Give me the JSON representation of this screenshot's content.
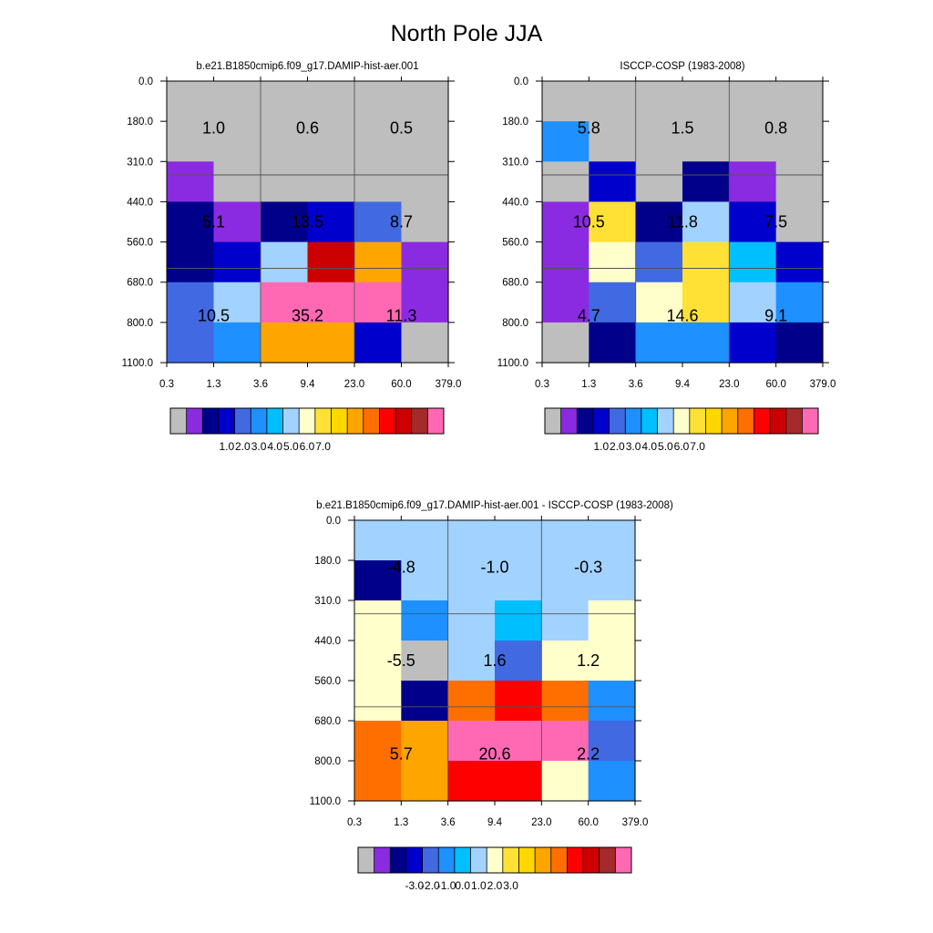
{
  "title": "North Pole JJA",
  "chart_data": [
    {
      "type": "heatmap",
      "title": "b.e21.B1850cmip6.f09_g17.DAMIP-hist-aer.001",
      "x_ticks": [
        "0.3",
        "1.3",
        "3.6",
        "9.4",
        "23.0",
        "60.0",
        "379.0"
      ],
      "y_ticks": [
        "0.0",
        "180.0",
        "310.0",
        "440.0",
        "560.0",
        "680.0",
        "800.0",
        "1100.0"
      ],
      "cell_colors": [
        [
          "#BEBEBE",
          "#BEBEBE",
          "#BEBEBE",
          "#BEBEBE",
          "#BEBEBE",
          "#BEBEBE"
        ],
        [
          "#BEBEBE",
          "#BEBEBE",
          "#BEBEBE",
          "#BEBEBE",
          "#BEBEBE",
          "#BEBEBE"
        ],
        [
          "#8A2BE2",
          "#BEBEBE",
          "#BEBEBE",
          "#BEBEBE",
          "#BEBEBE",
          "#BEBEBE"
        ],
        [
          "#00008B",
          "#8A2BE2",
          "#00008B",
          "#0000CD",
          "#4169E1",
          "#BEBEBE"
        ],
        [
          "#00008B",
          "#0000CD",
          "#A2D2FF",
          "#CC0000",
          "#FFA500",
          "#8A2BE2"
        ],
        [
          "#4169E1",
          "#A2D2FF",
          "#FF69B4",
          "#FF69B4",
          "#FF69B4",
          "#8A2BE2"
        ],
        [
          "#4169E1",
          "#1E90FF",
          "#FFA500",
          "#FFA500",
          "#0000CD",
          "#BEBEBE"
        ]
      ],
      "box_values": [
        [
          "1.0",
          "0.6",
          "0.5"
        ],
        [
          "5.1",
          "13.5",
          "8.7"
        ],
        [
          "10.5",
          "35.2",
          "11.3"
        ]
      ],
      "colorbar_labels": [
        "1.0",
        "2.0",
        "3.0",
        "4.0",
        "5.0",
        "6.0",
        "7.0"
      ],
      "colorbar_colors": [
        "#BEBEBE",
        "#8A2BE2",
        "#00008B",
        "#0000CD",
        "#4169E1",
        "#1E90FF",
        "#00BFFF",
        "#A2D2FF",
        "#FFFFCC",
        "#FFE135",
        "#FFD700",
        "#FFA500",
        "#FF6F00",
        "#FF0000",
        "#CC0000",
        "#A52A2A",
        "#FF69B4"
      ]
    },
    {
      "type": "heatmap",
      "title": "ISCCP-COSP (1983-2008)",
      "x_ticks": [
        "0.3",
        "1.3",
        "3.6",
        "9.4",
        "23.0",
        "60.0",
        "379.0"
      ],
      "y_ticks": [
        "0.0",
        "180.0",
        "310.0",
        "440.0",
        "560.0",
        "680.0",
        "800.0",
        "1100.0"
      ],
      "cell_colors": [
        [
          "#BEBEBE",
          "#BEBEBE",
          "#BEBEBE",
          "#BEBEBE",
          "#BEBEBE",
          "#BEBEBE"
        ],
        [
          "#1E90FF",
          "#BEBEBE",
          "#BEBEBE",
          "#BEBEBE",
          "#BEBEBE",
          "#BEBEBE"
        ],
        [
          "#BEBEBE",
          "#0000CD",
          "#BEBEBE",
          "#00008B",
          "#8A2BE2",
          "#BEBEBE"
        ],
        [
          "#8A2BE2",
          "#FFE135",
          "#00008B",
          "#A2D2FF",
          "#0000CD",
          "#BEBEBE"
        ],
        [
          "#8A2BE2",
          "#FFFFCC",
          "#4169E1",
          "#FFE135",
          "#00BFFF",
          "#0000CD"
        ],
        [
          "#8A2BE2",
          "#4169E1",
          "#FFFFCC",
          "#FFE135",
          "#A2D2FF",
          "#1E90FF"
        ],
        [
          "#BEBEBE",
          "#00008B",
          "#1E90FF",
          "#1E90FF",
          "#0000CD",
          "#00008B"
        ]
      ],
      "box_values": [
        [
          "5.8",
          "1.5",
          "0.8"
        ],
        [
          "10.5",
          "11.8",
          "7.5"
        ],
        [
          "4.7",
          "14.6",
          "9.1"
        ]
      ],
      "colorbar_labels": [
        "1.0",
        "2.0",
        "3.0",
        "4.0",
        "5.0",
        "6.0",
        "7.0"
      ],
      "colorbar_colors": [
        "#BEBEBE",
        "#8A2BE2",
        "#00008B",
        "#0000CD",
        "#4169E1",
        "#1E90FF",
        "#00BFFF",
        "#A2D2FF",
        "#FFFFCC",
        "#FFE135",
        "#FFD700",
        "#FFA500",
        "#FF6F00",
        "#FF0000",
        "#CC0000",
        "#A52A2A",
        "#FF69B4"
      ]
    },
    {
      "type": "heatmap",
      "title": "b.e21.B1850cmip6.f09_g17.DAMIP-hist-aer.001 - ISCCP-COSP (1983-2008)",
      "x_ticks": [
        "0.3",
        "1.3",
        "3.6",
        "9.4",
        "23.0",
        "60.0",
        "379.0"
      ],
      "y_ticks": [
        "0.0",
        "180.0",
        "310.0",
        "440.0",
        "560.0",
        "680.0",
        "800.0",
        "1100.0"
      ],
      "cell_colors": [
        [
          "#A2D2FF",
          "#A2D2FF",
          "#A2D2FF",
          "#A2D2FF",
          "#A2D2FF",
          "#A2D2FF"
        ],
        [
          "#00008B",
          "#A2D2FF",
          "#A2D2FF",
          "#A2D2FF",
          "#A2D2FF",
          "#A2D2FF"
        ],
        [
          "#FFFFCC",
          "#1E90FF",
          "#A2D2FF",
          "#00BFFF",
          "#A2D2FF",
          "#FFFFCC"
        ],
        [
          "#FFFFCC",
          "#BEBEBE",
          "#A2D2FF",
          "#4169E1",
          "#FFFFCC",
          "#FFFFCC"
        ],
        [
          "#FFFFCC",
          "#00008B",
          "#FF6F00",
          "#FF0000",
          "#FF6F00",
          "#1E90FF"
        ],
        [
          "#FF6F00",
          "#FFA500",
          "#FF69B4",
          "#FF69B4",
          "#FF69B4",
          "#4169E1"
        ],
        [
          "#FF6F00",
          "#FFA500",
          "#FF0000",
          "#FF0000",
          "#FFFFCC",
          "#1E90FF"
        ]
      ],
      "box_values": [
        [
          "-4.8",
          "-1.0",
          "-0.3"
        ],
        [
          "-5.5",
          "1.6",
          "1.2"
        ],
        [
          "5.7",
          "20.6",
          "2.2"
        ]
      ],
      "colorbar_labels": [
        "-3.0",
        "-2.0",
        "-1.0",
        "0.0",
        "1.0",
        "2.0",
        "3.0"
      ],
      "colorbar_colors": [
        "#BEBEBE",
        "#8A2BE2",
        "#00008B",
        "#0000CD",
        "#4169E1",
        "#1E90FF",
        "#00BFFF",
        "#A2D2FF",
        "#FFFFCC",
        "#FFE135",
        "#FFD700",
        "#FFA500",
        "#FF6F00",
        "#FF0000",
        "#CC0000",
        "#A52A2A",
        "#FF69B4"
      ]
    }
  ]
}
